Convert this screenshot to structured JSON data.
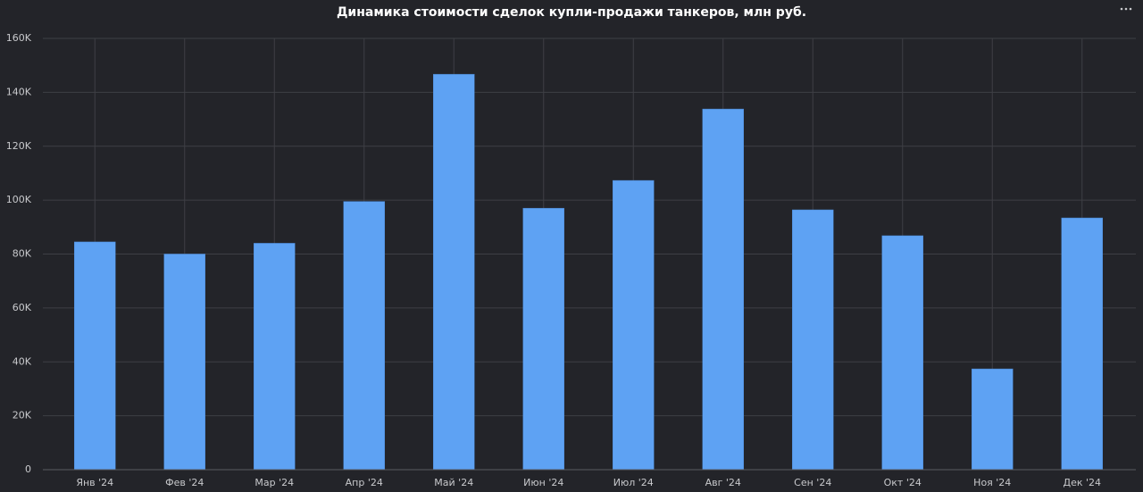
{
  "chart_data": {
    "type": "bar",
    "title": "Динамика стоимости сделок купли-продажи танкеров, млн руб.",
    "categories": [
      "Янв '24",
      "Фев '24",
      "Мар '24",
      "Апр '24",
      "Май '24",
      "Июн '24",
      "Июл '24",
      "Авг '24",
      "Сен '24",
      "Окт '24",
      "Ноя '24",
      "Дек '24"
    ],
    "values": [
      84500,
      80000,
      84000,
      99500,
      146700,
      97000,
      107300,
      133800,
      96400,
      86800,
      37400,
      93400
    ],
    "color": "#5ea2f3",
    "ylim": [
      0,
      160000
    ],
    "yticks": [
      0,
      {
        "value": 20000,
        "label": "20K"
      },
      {
        "value": 40000,
        "label": "40K"
      },
      {
        "value": 60000,
        "label": "60K"
      },
      {
        "value": 80000,
        "label": "80K"
      },
      {
        "value": 100000,
        "label": "100K"
      },
      {
        "value": 120000,
        "label": "120K"
      },
      {
        "value": 140000,
        "label": "140K"
      },
      {
        "value": 160000,
        "label": "160K"
      }
    ],
    "grid": true
  }
}
